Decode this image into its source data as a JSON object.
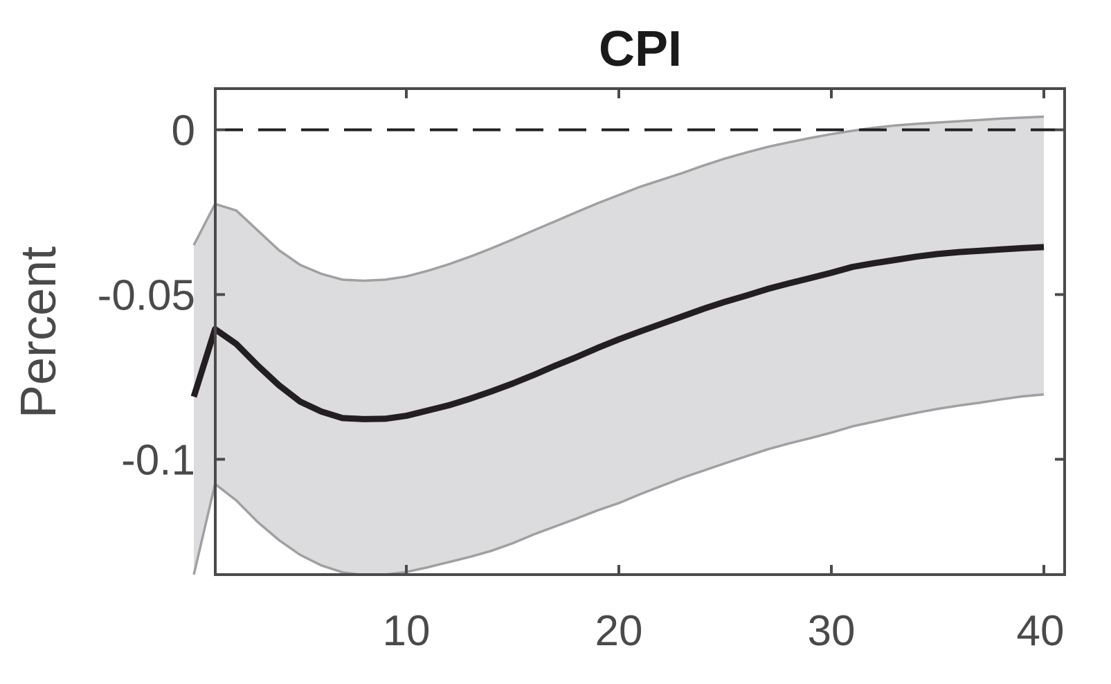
{
  "chart_data": {
    "type": "line",
    "title": "CPI",
    "xlabel": "",
    "ylabel": "Percent",
    "xlim": [
      0,
      40
    ],
    "ylim": [
      -0.135,
      0.0125
    ],
    "xticks": [
      10,
      20,
      30,
      40
    ],
    "xtick_labels": [
      "10",
      "20",
      "30",
      "40"
    ],
    "yticks": [
      0,
      -0.05,
      -0.1
    ],
    "ytick_labels": [
      "0",
      "-0.05",
      "-0.1"
    ],
    "reference_line": {
      "y": 0,
      "style": "dashed"
    },
    "grid": false,
    "x": [
      0,
      1,
      2,
      3,
      4,
      5,
      6,
      7,
      8,
      9,
      10,
      11,
      12,
      13,
      14,
      15,
      16,
      17,
      18,
      19,
      20,
      21,
      22,
      23,
      24,
      25,
      26,
      27,
      28,
      29,
      30,
      31,
      32,
      33,
      34,
      35,
      36,
      37,
      38,
      39,
      40
    ],
    "series": [
      {
        "role": "median",
        "values": [
          -0.081,
          -0.0605,
          -0.065,
          -0.0715,
          -0.0775,
          -0.0825,
          -0.0855,
          -0.0875,
          -0.0878,
          -0.0877,
          -0.0868,
          -0.0852,
          -0.0836,
          -0.0816,
          -0.0794,
          -0.077,
          -0.0744,
          -0.0716,
          -0.069,
          -0.0662,
          -0.0636,
          -0.0612,
          -0.0589,
          -0.0566,
          -0.0543,
          -0.0522,
          -0.0503,
          -0.0483,
          -0.0466,
          -0.045,
          -0.0434,
          -0.0416,
          -0.0405,
          -0.0395,
          -0.0385,
          -0.0377,
          -0.0371,
          -0.0367,
          -0.0363,
          -0.0359,
          -0.0356
        ]
      },
      {
        "role": "upper band",
        "values": [
          -0.035,
          -0.0225,
          -0.0245,
          -0.0305,
          -0.0365,
          -0.041,
          -0.0437,
          -0.0455,
          -0.0458,
          -0.0455,
          -0.0445,
          -0.0428,
          -0.0408,
          -0.0385,
          -0.036,
          -0.0333,
          -0.0305,
          -0.0278,
          -0.025,
          -0.0223,
          -0.0198,
          -0.0173,
          -0.0152,
          -0.0131,
          -0.0108,
          -0.0087,
          -0.0069,
          -0.0052,
          -0.0038,
          -0.0025,
          -0.0013,
          -0.0003,
          0.0006,
          0.0013,
          0.0018,
          0.0022,
          0.0026,
          0.003,
          0.0034,
          0.0037,
          0.004
        ]
      },
      {
        "role": "lower band",
        "values": [
          -0.135,
          -0.1075,
          -0.1125,
          -0.119,
          -0.1245,
          -0.129,
          -0.1322,
          -0.1343,
          -0.1352,
          -0.135,
          -0.1342,
          -0.1328,
          -0.1312,
          -0.1296,
          -0.1278,
          -0.1255,
          -0.1228,
          -0.1204,
          -0.118,
          -0.1155,
          -0.1133,
          -0.1106,
          -0.1081,
          -0.1056,
          -0.1034,
          -0.1012,
          -0.0991,
          -0.097,
          -0.0952,
          -0.0936,
          -0.0919,
          -0.09,
          -0.0886,
          -0.0872,
          -0.0859,
          -0.0847,
          -0.0837,
          -0.0828,
          -0.0818,
          -0.0809,
          -0.0803
        ]
      }
    ],
    "colors": {
      "median": "#231f20",
      "band_fill": "#dcdcde",
      "band_edge": "#a0a0a0",
      "axes": "#4a4a4a",
      "zero_line": "#231f20"
    }
  }
}
